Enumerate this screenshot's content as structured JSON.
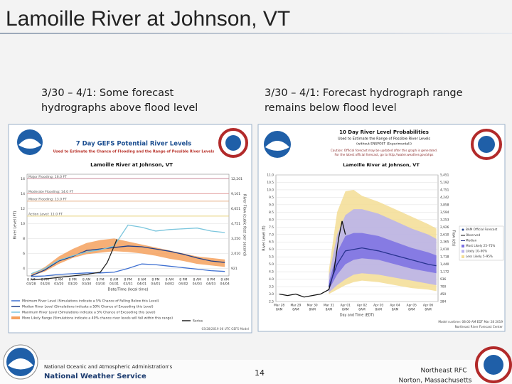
{
  "slide": {
    "title": "Lamoille River at Johnson, VT",
    "left_caption": "3/30 – 4/1: Some forecast hydrographs above flood level",
    "right_caption": "3/30 – 4/1: Forecast hydrograph range remains below flood level",
    "footer": {
      "agency_small": "National Oceanic and Atmospheric Administration's",
      "agency": "National Weather Service",
      "page": "14",
      "office": "Northeast RFC",
      "location": "Norton, Massachusetts"
    }
  },
  "chart_data": [
    {
      "type": "line",
      "title": "7 Day GEFS Potential River Levels",
      "subtitle": "Used to Estimate the Chance of Flooding and the Range of Possible River Levels",
      "station": "Lamoille River at Johnson, VT",
      "ylabel": "River Level (FT)",
      "y2label": "River Flow (cubic feet per second)",
      "xlabel": "Date/Time (local time)",
      "x_labels": [
        [
          "8 AM",
          "03/28"
        ],
        [
          "8 PM",
          "03/28"
        ],
        [
          "8 AM",
          "03/29"
        ],
        [
          "8 PM",
          "03/29"
        ],
        [
          "8 AM",
          "03/30"
        ],
        [
          "8 PM",
          "03/30"
        ],
        [
          "8 AM",
          "03/31"
        ],
        [
          "8 PM",
          "03/31"
        ],
        [
          "8 AM",
          "04/01"
        ],
        [
          "8 PM",
          "04/01"
        ],
        [
          "8 AM",
          "04/02"
        ],
        [
          "8 PM",
          "04/02"
        ],
        [
          "8 AM",
          "04/03"
        ],
        [
          "8 PM",
          "04/03"
        ],
        [
          "8 AM",
          "04/04"
        ]
      ],
      "xlim": [
        -0.3,
        14.3
      ],
      "ylim": [
        3,
        16.6
      ],
      "yticks": [
        4,
        6,
        8,
        10,
        12,
        14,
        16
      ],
      "y2_labels": [
        "921",
        "2,010",
        "3,250",
        "4,751",
        "6,651",
        "9,101",
        "12,201"
      ],
      "grid": true,
      "flood_levels": [
        {
          "label": "Major Flooding: 16.0 FT",
          "value": 16,
          "color": "#c98a9a"
        },
        {
          "label": "Moderate Flooding: 14.0 FT",
          "value": 14,
          "color": "#e3a0a0"
        },
        {
          "label": "Minor Flooding: 13.0 FT",
          "value": 13,
          "color": "#e9b58c"
        },
        {
          "label": "Action Level: 11.0 FT",
          "value": 11,
          "color": "#e8d27c"
        }
      ],
      "bands": [
        {
          "name": "More Likely Range (Simulations indicate a 40% chance river levels will fall within this range)",
          "color": "#f5a15e",
          "x": [
            0,
            1,
            2,
            3,
            4,
            5,
            6,
            7,
            8,
            9,
            10,
            11,
            12,
            13,
            14
          ],
          "low": [
            3.0,
            3.6,
            4.6,
            5.4,
            5.9,
            6.1,
            6.3,
            6.2,
            6.0,
            5.7,
            5.3,
            5.0,
            4.6,
            4.4,
            4.2
          ],
          "high": [
            3.2,
            4.2,
            5.6,
            6.6,
            7.4,
            7.8,
            8.0,
            7.6,
            7.2,
            6.8,
            6.4,
            6.0,
            5.6,
            5.4,
            5.2
          ]
        }
      ],
      "series": [
        {
          "name": "Minimum River Level (Simulations indicate a 5% Chance of Falling Below this Level)",
          "color": "#3d6fd1",
          "x": [
            0,
            1,
            2,
            3,
            4,
            5,
            6,
            7,
            8,
            9,
            10,
            11,
            12,
            13,
            14
          ],
          "values": [
            2.9,
            3.0,
            3.2,
            3.3,
            3.4,
            3.4,
            3.5,
            4.0,
            4.6,
            4.5,
            4.3,
            4.1,
            3.9,
            3.7,
            3.6
          ]
        },
        {
          "name": "Median River Level (Simulations indicate a 50% Chance of Exceeding this Level)",
          "color": "#1f3f8a",
          "x": [
            0,
            1,
            2,
            3,
            4,
            5,
            6,
            7,
            8,
            9,
            10,
            11,
            12,
            13,
            14
          ],
          "values": [
            3.0,
            3.8,
            5.0,
            5.6,
            6.4,
            6.6,
            6.8,
            7.0,
            6.9,
            6.6,
            6.3,
            5.9,
            5.4,
            5.0,
            4.8
          ]
        },
        {
          "name": "Maximum River Level (Simulations indicate a 5% Chance of Exceeding this Level)",
          "color": "#7cc6dd",
          "x": [
            0,
            1,
            2,
            3,
            4,
            5,
            6,
            7,
            8,
            9,
            10,
            11,
            12,
            13,
            14
          ],
          "values": [
            3.3,
            4.0,
            5.1,
            5.7,
            6.2,
            6.5,
            7.0,
            9.8,
            9.5,
            9.0,
            9.2,
            9.3,
            9.4,
            9.0,
            8.8
          ]
        },
        {
          "name": "Series",
          "color": "#222222",
          "x": [
            0,
            1,
            2,
            3,
            4,
            5,
            5.5,
            6,
            6.2
          ],
          "values": [
            2.5,
            2.6,
            2.8,
            3.0,
            3.2,
            3.5,
            4.8,
            7.0,
            7.9
          ]
        }
      ],
      "footer_note": "03/28/2019 06 UTC GEFS Model"
    },
    {
      "type": "line",
      "title": "10 Day River Level Probabilities",
      "subtitle": "Used to Estimate the Range of Possible River Levels",
      "subtitle2": "(without ENSPOST (Experimental))",
      "caution": [
        "Caution: Official forecast may be updated after this graph is generated.",
        "For the latest official forecast, go to http://water.weather.gov/ahps"
      ],
      "station": "Lamoille River at Johnson, VT",
      "ylabel": "River Level (ft)",
      "y2label": "Flow (cfs)",
      "xlabel": "Day and Time (EDT)",
      "x_labels": [
        [
          "Mar 28",
          "8AM"
        ],
        [
          "Mar 29",
          "8AM"
        ],
        [
          "Mar 30",
          "8AM"
        ],
        [
          "Mar 31",
          "8AM"
        ],
        [
          "Apr 01",
          "8AM"
        ],
        [
          "Apr 02",
          "8AM"
        ],
        [
          "Apr 03",
          "8AM"
        ],
        [
          "Apr 04",
          "8AM"
        ],
        [
          "Apr 05",
          "8AM"
        ],
        [
          "Apr 06",
          "8AM"
        ]
      ],
      "xlim": [
        -0.2,
        9.6
      ],
      "ylim": [
        2.5,
        11
      ],
      "yticks": [
        {
          "value": 2.5,
          "label": "2.5"
        },
        {
          "value": 3,
          "label": "3.0"
        },
        {
          "value": 3.5,
          "label": "3.5"
        },
        {
          "value": 4,
          "label": "4.0"
        },
        {
          "value": 4.5,
          "label": "4.5"
        },
        {
          "value": 5,
          "label": "5.0"
        },
        {
          "value": 5.5,
          "label": "5.5"
        },
        {
          "value": 6,
          "label": "6.0"
        },
        {
          "value": 6.5,
          "label": "6.5"
        },
        {
          "value": 7,
          "label": "7.0"
        },
        {
          "value": 7.5,
          "label": "7.5"
        },
        {
          "value": 8,
          "label": "8.0"
        },
        {
          "value": 8.5,
          "label": "8.5"
        },
        {
          "value": 9,
          "label": "9.0"
        },
        {
          "value": 9.5,
          "label": "9.5"
        },
        {
          "value": 10,
          "label": "10.0"
        },
        {
          "value": 10.5,
          "label": "10.5"
        },
        {
          "value": 11,
          "label": "11.0"
        }
      ],
      "y2_labels": [
        "284",
        "450",
        "700",
        "936",
        "1,172",
        "1,440",
        "1,718",
        "2,010",
        "2,365",
        "2,610",
        "2,926",
        "3,253",
        "3,594",
        "3,858",
        "4,242",
        "4,751",
        "5,192",
        "5,451"
      ],
      "grid": true,
      "bands": [
        {
          "name": "Less Likely 5–95%",
          "color": "#f3dd94",
          "x": [
            3,
            3.5,
            4,
            4.5,
            5,
            6,
            7,
            8,
            9,
            9.5
          ],
          "low": [
            3.0,
            3.3,
            3.6,
            3.8,
            3.9,
            3.8,
            3.6,
            3.4,
            3.3,
            3.2
          ],
          "high": [
            4.6,
            8.5,
            9.9,
            10.0,
            9.6,
            9.2,
            8.7,
            8.2,
            7.7,
            7.4
          ]
        },
        {
          "name": "Likely 10–90%",
          "color": "#b7b1ee",
          "x": [
            3,
            3.5,
            4,
            4.5,
            5,
            6,
            7,
            8,
            9,
            9.5
          ],
          "low": [
            3.1,
            3.6,
            4.0,
            4.3,
            4.4,
            4.3,
            4.1,
            3.9,
            3.7,
            3.6
          ],
          "high": [
            4.2,
            7.0,
            8.3,
            8.7,
            8.7,
            8.4,
            7.9,
            7.4,
            7.0,
            6.7
          ]
        },
        {
          "name": "Most Likely 25–75%",
          "color": "#7b70e3",
          "x": [
            3,
            3.5,
            4,
            4.5,
            5,
            6,
            7,
            8,
            9,
            9.5
          ],
          "low": [
            3.3,
            4.3,
            5.0,
            5.3,
            5.4,
            5.3,
            5.0,
            4.7,
            4.5,
            4.4
          ],
          "high": [
            3.8,
            5.8,
            6.9,
            7.1,
            7.1,
            6.9,
            6.5,
            6.1,
            5.8,
            5.6
          ]
        }
      ],
      "series": [
        {
          "name": "Observed",
          "color": "#111111",
          "x": [
            0,
            0.5,
            1,
            1.5,
            2,
            2.5,
            3,
            3.3,
            3.6,
            3.8,
            4.0
          ],
          "values": [
            3.0,
            2.9,
            3.0,
            2.8,
            2.9,
            3.0,
            3.3,
            4.5,
            6.8,
            7.9,
            7.0
          ]
        },
        {
          "name": "Median",
          "color": "#28338f",
          "x": [
            3,
            3.5,
            4,
            4.5,
            5,
            6,
            7,
            8,
            9,
            9.5
          ],
          "values": [
            3.5,
            5.0,
            5.9,
            6.0,
            6.1,
            5.9,
            5.6,
            5.3,
            5.0,
            4.9
          ]
        }
      ],
      "legend_extra": "BAM Official Forecast",
      "footer": [
        "Model runtime: 08:00 AM EDT Mar 28 2019",
        "Northeast River Forecast Center"
      ]
    }
  ]
}
